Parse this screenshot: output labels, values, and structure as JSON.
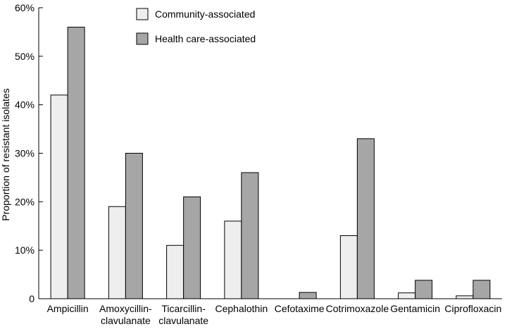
{
  "chart_data": {
    "type": "bar",
    "title": "",
    "xlabel": "",
    "ylabel": "Proportion of resistant isolates",
    "ylim": [
      0,
      60
    ],
    "y_ticks": [
      0,
      10,
      20,
      30,
      40,
      50,
      60
    ],
    "y_tick_labels": [
      "0",
      "10%",
      "20%",
      "30%",
      "40%",
      "50%",
      "60%"
    ],
    "categories": [
      [
        "Ampicillin"
      ],
      [
        "Amoxycillin-",
        "clavulanate"
      ],
      [
        "Ticarcillin-",
        "clavulanate"
      ],
      [
        "Cephalothin"
      ],
      [
        "Cefotaxime"
      ],
      [
        "Cotrimoxazole"
      ],
      [
        "Gentamicin"
      ],
      [
        "Ciprofloxacin"
      ]
    ],
    "series": [
      {
        "name": "Community-associated",
        "color": "#eeeeee",
        "values": [
          42,
          19,
          11,
          16,
          0,
          13,
          1.2,
          0.6
        ]
      },
      {
        "name": "Health care-associated",
        "color": "#a6a6a6",
        "values": [
          56,
          30,
          21,
          26,
          1.3,
          33,
          3.8,
          3.8
        ]
      }
    ],
    "legend_position": "top-center",
    "grid": false
  }
}
